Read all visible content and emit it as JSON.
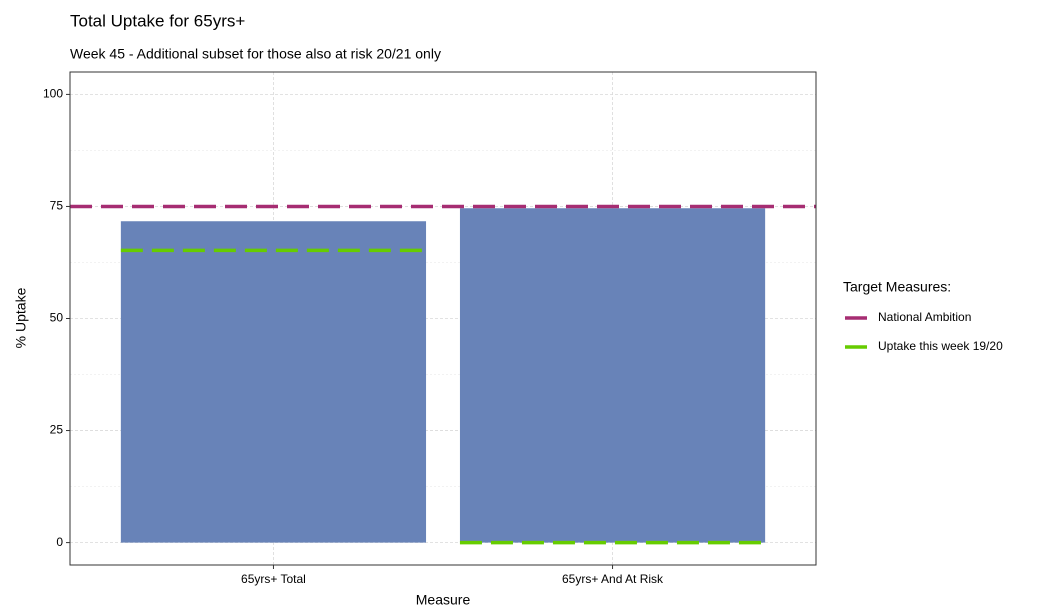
{
  "chart_data": {
    "type": "bar",
    "title": "Total Uptake for 65yrs+",
    "subtitle": "Week 45 - Additional subset for those also at risk 20/21 only",
    "x_label": "Measure",
    "y_label": "% Uptake",
    "categories": [
      "65yrs+ Total",
      "65yrs+ And At Risk"
    ],
    "values": [
      71.7,
      74.6
    ],
    "color": "#6883b8",
    "ylim": [
      -5,
      105
    ],
    "yticks": [
      0,
      25,
      50,
      75,
      100
    ],
    "grid": true,
    "legend_title": "Target Measures:",
    "legend_position": "right",
    "reference_lines": [
      {
        "name": "National Ambition",
        "color": "#a62d72",
        "value": 75
      },
      {
        "name": "Uptake this week 19/20",
        "color": "#66cc00",
        "values": [
          65.2,
          0
        ]
      }
    ]
  }
}
